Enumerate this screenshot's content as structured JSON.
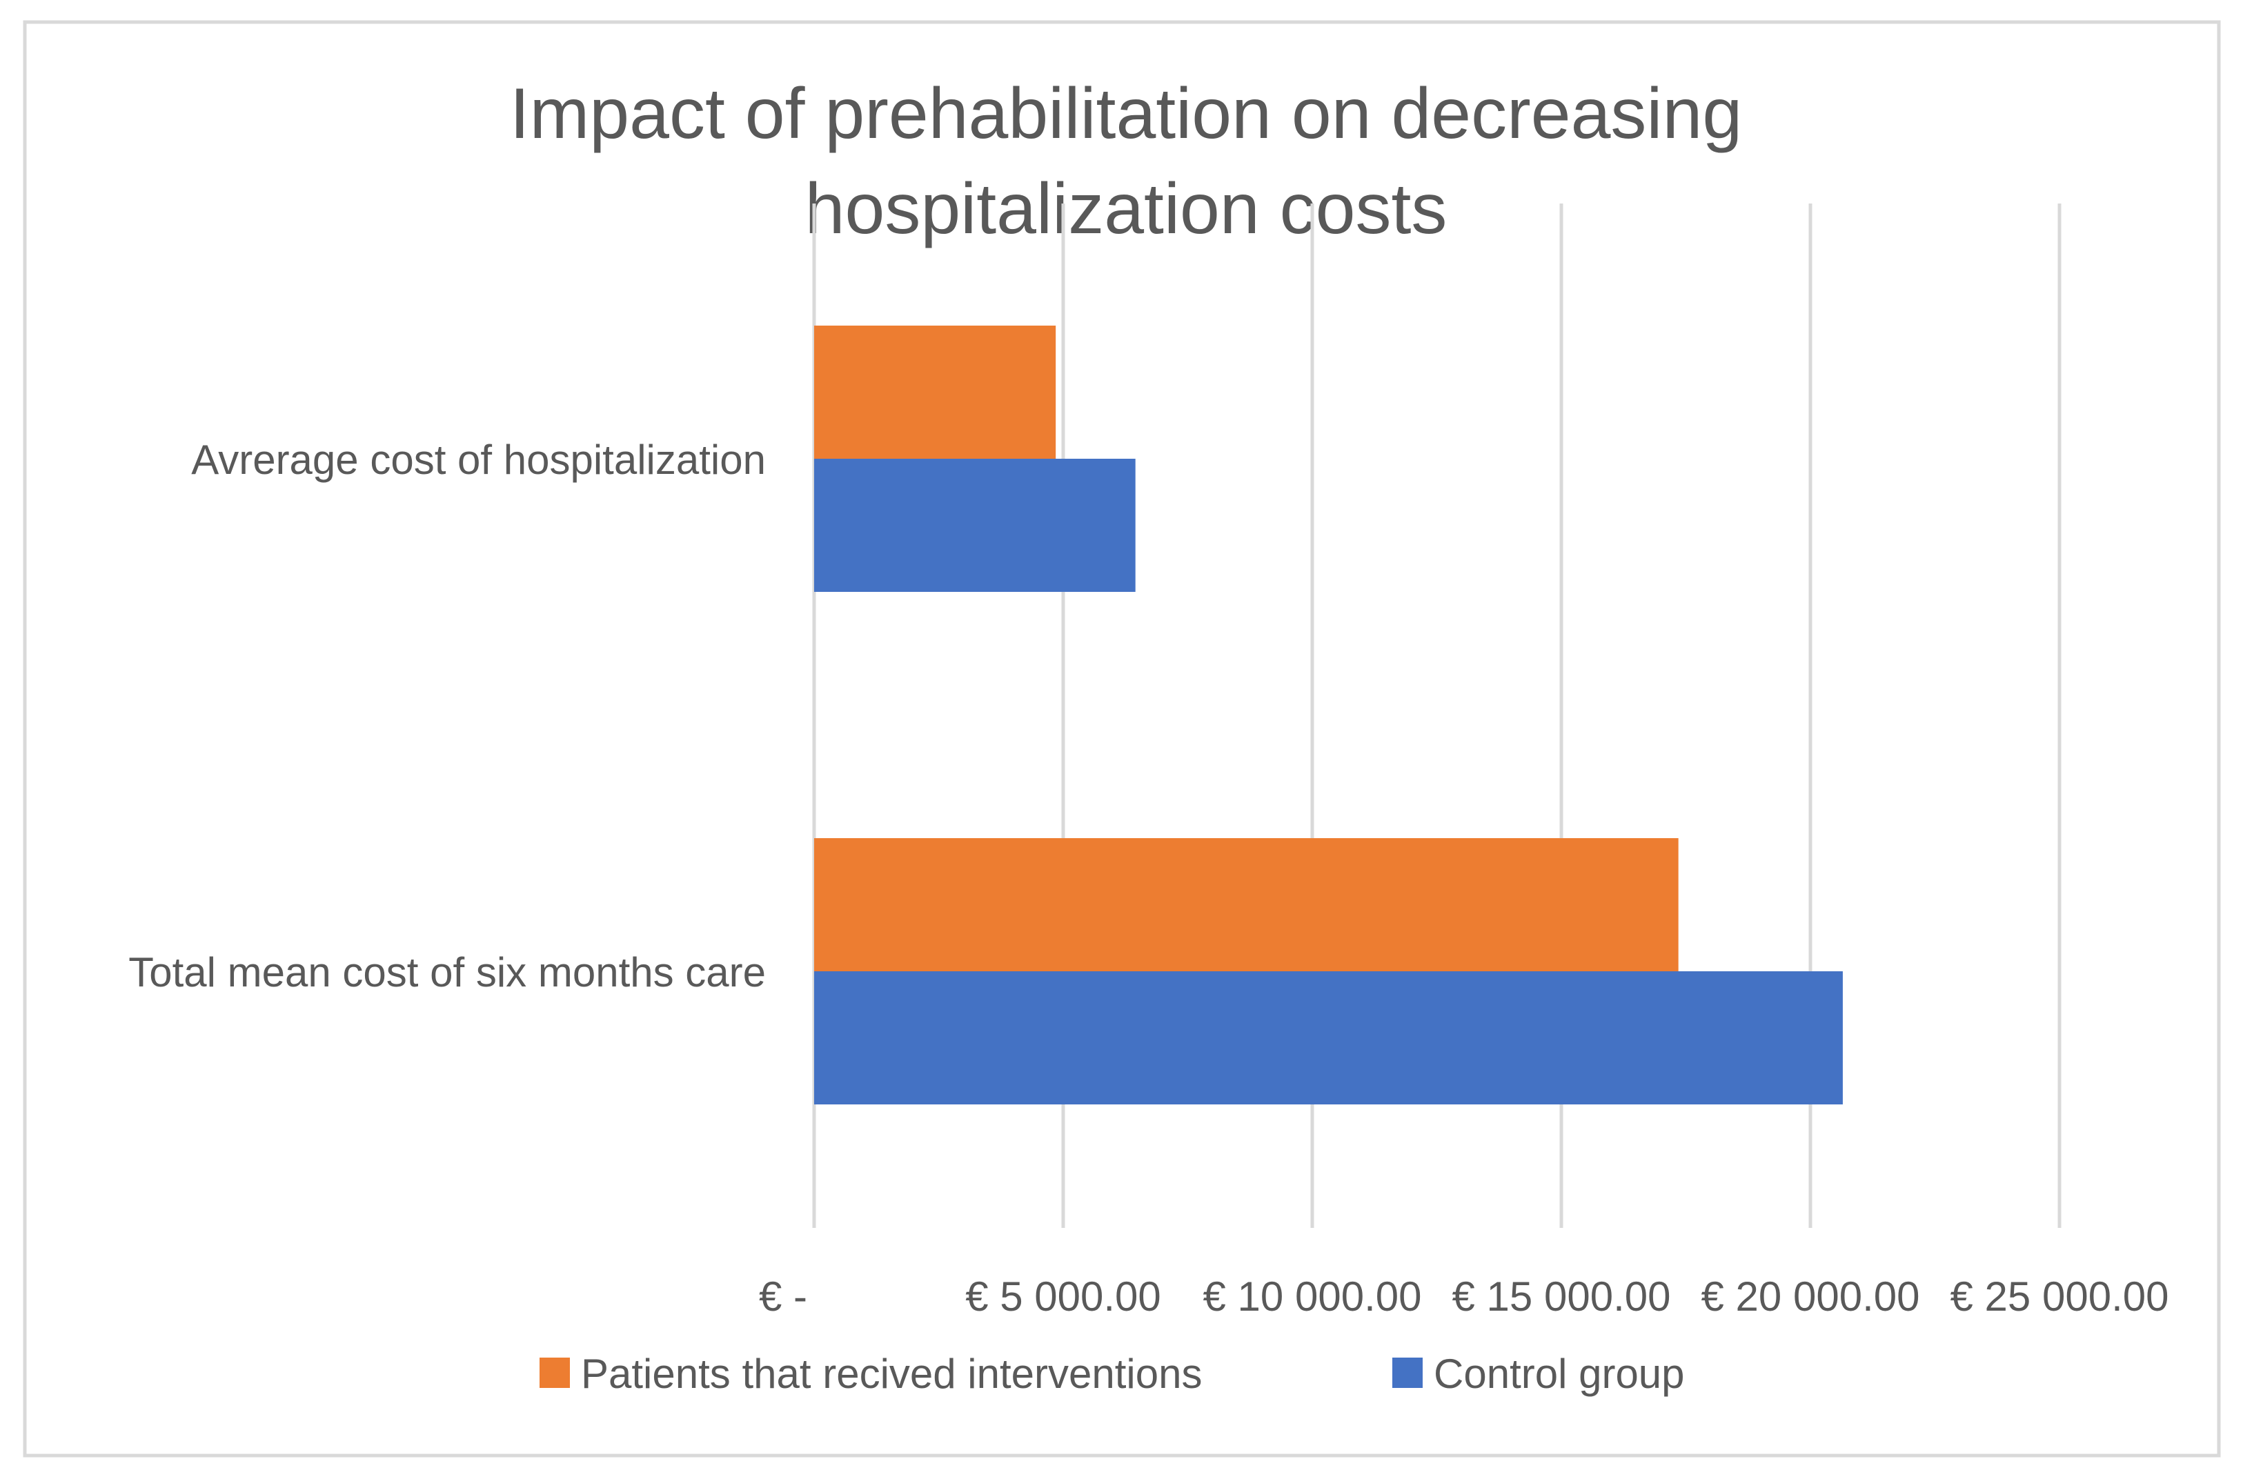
{
  "chart_data": {
    "type": "bar",
    "orientation": "horizontal",
    "title": "Impact of prehabilitation on decreasing hospitalization costs",
    "title_lines": [
      "Impact of prehabilitation on decreasing",
      "hospitalization costs"
    ],
    "categories": [
      "Avrerage cost of hospitalization",
      "Total mean cost of six months care"
    ],
    "series": [
      {
        "name": "Patients that recived interventions",
        "color": "#ED7D31",
        "values": [
          4850,
          17350
        ]
      },
      {
        "name": "Control group",
        "color": "#4472C4",
        "values": [
          6450,
          20650
        ]
      }
    ],
    "xlim": [
      0,
      25000
    ],
    "xticks": [
      0,
      5000,
      10000,
      15000,
      20000,
      25000
    ],
    "xtick_labels": [
      "€ -",
      "€ 5 000.00",
      "€ 10 000.00",
      "€ 15 000.00",
      "€ 20 000.00",
      "€ 25 000.00"
    ],
    "grid": true,
    "legend_position": "bottom",
    "colors": {
      "text": "#595959",
      "grid": "#D9D9D9",
      "border": "#D9D9D9"
    }
  }
}
